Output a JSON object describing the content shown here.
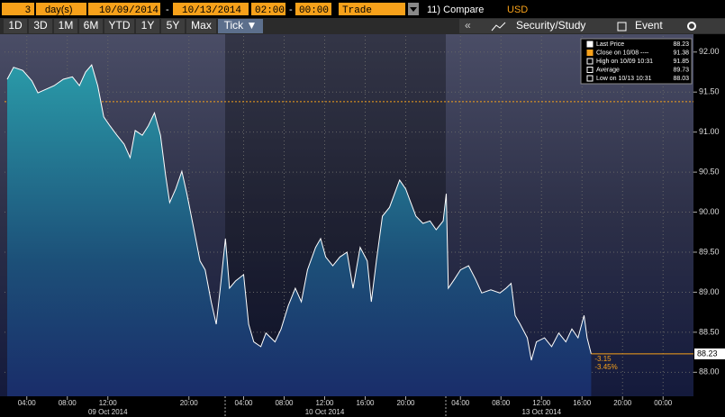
{
  "toolbar": {
    "period_count": "3",
    "period_unit": "day(s)",
    "start_date": "10/09/2014",
    "date_sep": "-",
    "end_date": "10/13/2014",
    "start_time": "02:00",
    "time_sep": "-",
    "end_time": "00:00",
    "market": "Trade",
    "compare": "11) Compare",
    "currency": "USD"
  },
  "tabs": [
    "1D",
    "3D",
    "1M",
    "6M",
    "YTD",
    "1Y",
    "5Y",
    "Max",
    "Tick ▼"
  ],
  "actions": [
    "«",
    "Security/Study",
    "Event"
  ],
  "chart_data": {
    "type": "line",
    "x": [
      2.07,
      2.7,
      3.6,
      4.5,
      5.1,
      5.8,
      6.7,
      7.6,
      8.5,
      9.2,
      9.8,
      10.4,
      11.0,
      11.6,
      12.2,
      12.9,
      13.6,
      14.2,
      14.7,
      15.4,
      16.0,
      16.6,
      17.2,
      17.7,
      18.1,
      18.7,
      19.3,
      19.8,
      20.5,
      21.1,
      21.6,
      22.2,
      22.7,
      23.1,
      23.6,
      24.0,
      24.6,
      25.4,
      25.9,
      26.4,
      27.1,
      27.6,
      28.5,
      29.1,
      29.8,
      30.5,
      31.1,
      31.7,
      32.5,
      33.0,
      33.5,
      34.2,
      34.9,
      35.6,
      36.2,
      36.9,
      37.6,
      38.0,
      38.5,
      39.1,
      39.8,
      40.3,
      40.8,
      41.4,
      41.9,
      42.4,
      43.1,
      43.8,
      44.4,
      45.1,
      45.4,
      45.6,
      46.2,
      46.8,
      47.6,
      48.3,
      48.9,
      49.8,
      50.7,
      51.3,
      51.8,
      52.2,
      52.7,
      53.4,
      53.8,
      54.3,
      55.1,
      55.8,
      56.5,
      57.2,
      57.8,
      58.4,
      59.0,
      59.3,
      59.7
    ],
    "series": [
      {
        "name": "Last Price",
        "color": "#ffffff",
        "values": [
          91.66,
          91.81,
          91.77,
          91.64,
          91.49,
          91.53,
          91.58,
          91.66,
          91.69,
          91.58,
          91.75,
          91.84,
          91.58,
          91.19,
          91.08,
          90.96,
          90.85,
          90.68,
          91.02,
          90.96,
          91.08,
          91.24,
          90.96,
          90.46,
          90.12,
          90.29,
          90.51,
          90.23,
          89.78,
          89.39,
          89.28,
          88.88,
          88.6,
          89.05,
          89.67,
          89.05,
          89.14,
          89.22,
          88.6,
          88.38,
          88.32,
          88.49,
          88.38,
          88.54,
          88.83,
          89.05,
          88.88,
          89.28,
          89.56,
          89.67,
          89.44,
          89.33,
          89.44,
          89.5,
          89.05,
          89.56,
          89.39,
          88.88,
          89.39,
          89.95,
          90.06,
          90.23,
          90.4,
          90.29,
          90.12,
          89.95,
          89.86,
          89.89,
          89.78,
          89.89,
          90.23,
          89.05,
          89.16,
          89.28,
          89.33,
          89.16,
          88.99,
          89.03,
          88.99,
          89.05,
          89.11,
          88.71,
          88.6,
          88.43,
          88.15,
          88.38,
          88.43,
          88.32,
          88.49,
          88.38,
          88.54,
          88.43,
          88.71,
          88.43,
          88.23
        ]
      }
    ],
    "xlim": [
      1.8,
      69.8
    ],
    "xticks": [
      {
        "value": 4,
        "label": "04:00"
      },
      {
        "value": 8,
        "label": "08:00"
      },
      {
        "value": 12,
        "label": "12:00"
      },
      {
        "value": 20,
        "label": "20:00"
      },
      {
        "value": 25.4,
        "label": "04:00"
      },
      {
        "value": 29.4,
        "label": "08:00"
      },
      {
        "value": 33.4,
        "label": "12:00"
      },
      {
        "value": 37.4,
        "label": "16:00"
      },
      {
        "value": 41.4,
        "label": "20:00"
      },
      {
        "value": 46.8,
        "label": "04:00"
      },
      {
        "value": 50.8,
        "label": "08:00"
      },
      {
        "value": 54.8,
        "label": "12:00"
      },
      {
        "value": 58.8,
        "label": "16:00"
      },
      {
        "value": 62.8,
        "label": "20:00"
      },
      {
        "value": 66.8,
        "label": "00:00"
      }
    ],
    "date_labels": [
      "09 Oct 2014",
      "10 Oct 2014",
      "13 Oct 2014"
    ],
    "ylim": [
      87.7,
      92.2
    ],
    "yticks": [
      {
        "value": 88,
        "label": "88.00"
      },
      {
        "value": 88.5,
        "label": "88.50"
      },
      {
        "value": 89,
        "label": "89.00"
      },
      {
        "value": 89.5,
        "label": "89.50"
      },
      {
        "value": 90,
        "label": "90.00"
      },
      {
        "value": 90.5,
        "label": "90.50"
      },
      {
        "value": 91,
        "label": "91.00"
      },
      {
        "value": 91.5,
        "label": "91.50"
      },
      {
        "value": 92,
        "label": "92.00"
      }
    ],
    "legend": [
      {
        "label": "Last Price",
        "value": 88.23
      },
      {
        "label": "Close on 10/08 ----",
        "value": 91.38
      },
      {
        "label": "High on 10/09 10:31",
        "value": 91.85
      },
      {
        "label": "Average",
        "value": 89.73
      },
      {
        "label": "Low on 10/13 10:31",
        "value": 88.03
      }
    ],
    "annotations": [
      "-3.15",
      "-3.45%"
    ],
    "grid": true
  }
}
